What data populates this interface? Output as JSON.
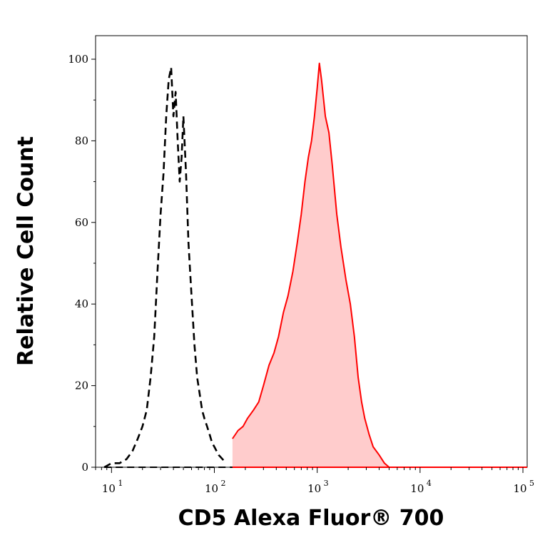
{
  "chart_data": {
    "type": "area",
    "title": "",
    "xlabel": "CD5 Alexa Fluor® 700",
    "ylabel": "Relative Cell Count",
    "xscale": "log",
    "xlim": [
      7,
      110000
    ],
    "ylim": [
      0,
      100
    ],
    "x_ticks": [
      {
        "base": "10",
        "exp": "1",
        "value": 10
      },
      {
        "base": "10",
        "exp": "2",
        "value": 100
      },
      {
        "base": "10",
        "exp": "3",
        "value": 1000
      },
      {
        "base": "10",
        "exp": "4",
        "value": 10000
      },
      {
        "base": "10",
        "exp": "5",
        "value": 100000
      }
    ],
    "y_ticks": [
      "0",
      "20",
      "40",
      "60",
      "80",
      "100"
    ],
    "grid": false,
    "series": [
      {
        "style": "dashed",
        "color": "#000000",
        "fill": "none",
        "x": [
          8.5,
          10,
          12,
          14,
          16,
          18,
          20,
          22,
          24,
          26,
          28,
          30,
          32,
          34,
          36,
          38,
          40,
          42,
          44,
          46,
          48,
          50,
          53,
          56,
          60,
          64,
          68,
          72,
          76,
          80,
          85,
          90,
          95,
          100,
          110,
          120,
          130
        ],
        "values": [
          0,
          1,
          1,
          2,
          4,
          7,
          10,
          14,
          22,
          32,
          48,
          62,
          72,
          86,
          95,
          98,
          86,
          92,
          80,
          70,
          76,
          86,
          72,
          55,
          42,
          30,
          22,
          18,
          14,
          12,
          10,
          8,
          6,
          5,
          3,
          2,
          1
        ]
      },
      {
        "style": "solid",
        "color": "#ff0000",
        "fill": "#ffcccc",
        "x": [
          150,
          170,
          190,
          210,
          240,
          270,
          300,
          340,
          380,
          420,
          470,
          520,
          580,
          640,
          700,
          760,
          820,
          880,
          940,
          1000,
          1050,
          1100,
          1200,
          1300,
          1400,
          1550,
          1700,
          1900,
          2100,
          2300,
          2500,
          2700,
          2900,
          3200,
          3500,
          4000,
          4500,
          5000
        ],
        "values": [
          7,
          9,
          10,
          12,
          14,
          16,
          20,
          25,
          28,
          32,
          38,
          42,
          48,
          55,
          62,
          70,
          76,
          80,
          86,
          93,
          99,
          95,
          86,
          82,
          74,
          62,
          54,
          46,
          40,
          32,
          22,
          16,
          12,
          8,
          5,
          3,
          1,
          0
        ]
      }
    ]
  }
}
